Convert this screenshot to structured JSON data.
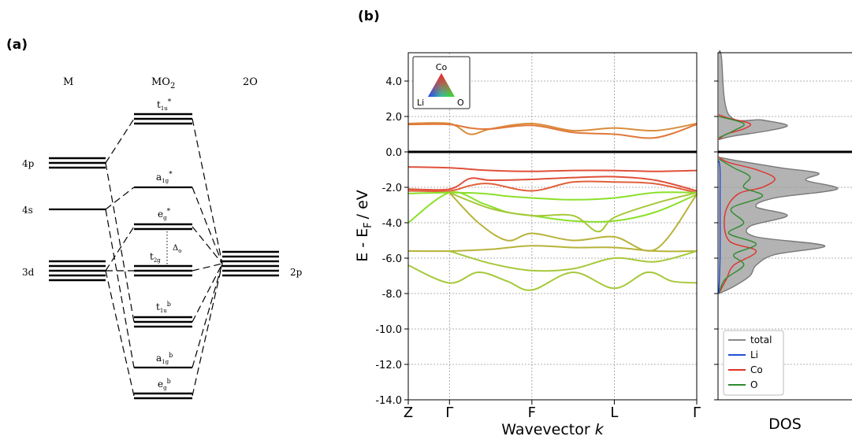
{
  "panel_a": {
    "label": "(a)",
    "columns": {
      "metal": "M",
      "complex": "MO",
      "complex_sub": "2",
      "ligand": "2O"
    },
    "metal_levels": {
      "p": "4p",
      "s": "4s",
      "d": "3d"
    },
    "ligand_level": "2p",
    "mo_levels": {
      "t1u_star": {
        "main": "t",
        "sub": "1u",
        "sup": "*"
      },
      "a1g_star": {
        "main": "a",
        "sub": "1g",
        "sup": "*"
      },
      "eg_star": {
        "main": "e",
        "sub": "g",
        "sup": "*"
      },
      "t2g": {
        "main": "t",
        "sub": "2g",
        "sup": ""
      },
      "delta": {
        "main": "Δ",
        "sub": "o"
      },
      "t1u_b": {
        "main": "t",
        "sub": "1u",
        "sup": "b"
      },
      "a1g_b": {
        "main": "a",
        "sub": "1g",
        "sup": "b"
      },
      "eg_b": {
        "main": "e",
        "sub": "g",
        "sup": "b"
      }
    }
  },
  "panel_b": {
    "label": "(b)",
    "colors": {
      "band_orange": "#d98c3a",
      "band_red": "#e0503a",
      "band_green": "#8be02a",
      "band_olive": "#b7b33a",
      "band_yg": "#a6c83a",
      "total": "#888888",
      "li": "#1f4fd8",
      "co": "#e0302a",
      "o": "#2e8b2e"
    },
    "triangle_legend": {
      "top": "Co",
      "left": "Li",
      "right": "O"
    },
    "band_chart": {
      "type": "line",
      "ylabel_main": "E - E",
      "ylabel_sub": "F",
      "ylabel_unit": "/ eV",
      "xlabel": "Wavevector",
      "xlabel_italic": "k",
      "ylim": [
        -14.0,
        5.6
      ],
      "yticks": [
        "4.0",
        "2.0",
        "0.0",
        "-2.0",
        "-4.0",
        "-6.0",
        "-8.0",
        "-10.0",
        "-12.0",
        "-14.0"
      ],
      "ytick_values": [
        4,
        2,
        0,
        -2,
        -4,
        -6,
        -8,
        -10,
        -12,
        -14
      ],
      "kpoints": [
        "Z",
        "Γ",
        "F",
        "L",
        "Γ"
      ],
      "kpoint_positions": [
        0,
        0.5,
        1.5,
        2.5,
        3.5
      ],
      "fermi_level": 0,
      "grid": true,
      "bands": [
        {
          "color": "#d98c3a",
          "points": [
            [
              0,
              1.6
            ],
            [
              0.5,
              1.6
            ],
            [
              0.75,
              1.0
            ],
            [
              1.0,
              1.3
            ],
            [
              1.5,
              1.6
            ],
            [
              2.0,
              1.2
            ],
            [
              2.5,
              1.35
            ],
            [
              3.0,
              1.2
            ],
            [
              3.5,
              1.6
            ]
          ]
        },
        {
          "color": "#e0783a",
          "points": [
            [
              0,
              1.55
            ],
            [
              0.5,
              1.55
            ],
            [
              0.75,
              1.35
            ],
            [
              1.0,
              1.3
            ],
            [
              1.5,
              1.5
            ],
            [
              2.0,
              1.1
            ],
            [
              2.5,
              1.0
            ],
            [
              3.0,
              0.8
            ],
            [
              3.5,
              1.55
            ]
          ]
        },
        {
          "color": "#e0503a",
          "points": [
            [
              0,
              -0.85
            ],
            [
              0.5,
              -0.9
            ],
            [
              1.0,
              -1.05
            ],
            [
              1.5,
              -1.1
            ],
            [
              2.0,
              -1.05
            ],
            [
              2.5,
              -1.05
            ],
            [
              3.0,
              -1.1
            ],
            [
              3.5,
              -1.05
            ]
          ]
        },
        {
          "color": "#e0503a",
          "points": [
            [
              0,
              -2.1
            ],
            [
              0.5,
              -2.1
            ],
            [
              0.75,
              -1.5
            ],
            [
              1.0,
              -1.6
            ],
            [
              1.5,
              -1.55
            ],
            [
              2.0,
              -1.45
            ],
            [
              2.5,
              -1.4
            ],
            [
              3.0,
              -1.6
            ],
            [
              3.5,
              -2.2
            ]
          ]
        },
        {
          "color": "#e0603a",
          "points": [
            [
              0,
              -2.2
            ],
            [
              0.5,
              -2.2
            ],
            [
              0.75,
              -1.9
            ],
            [
              1.0,
              -1.8
            ],
            [
              1.5,
              -2.2
            ],
            [
              2.0,
              -1.7
            ],
            [
              2.5,
              -1.7
            ],
            [
              3.0,
              -1.8
            ],
            [
              3.5,
              -2.3
            ]
          ]
        },
        {
          "color": "#8be02a",
          "points": [
            [
              0,
              -2.35
            ],
            [
              0.5,
              -2.3
            ],
            [
              0.9,
              -2.35
            ],
            [
              1.2,
              -2.5
            ],
            [
              1.5,
              -2.6
            ],
            [
              2.0,
              -2.7
            ],
            [
              2.5,
              -2.6
            ],
            [
              3.0,
              -2.3
            ],
            [
              3.5,
              -2.3
            ]
          ]
        },
        {
          "color": "#8be02a",
          "points": [
            [
              0,
              -4.0
            ],
            [
              0.5,
              -2.3
            ],
            [
              0.9,
              -2.9
            ],
            [
              1.2,
              -3.4
            ],
            [
              1.5,
              -3.6
            ],
            [
              2.0,
              -3.9
            ],
            [
              2.5,
              -3.9
            ],
            [
              3.0,
              -3.4
            ],
            [
              3.5,
              -2.4
            ]
          ]
        },
        {
          "color": "#a6c83a",
          "points": [
            [
              0.5,
              -2.3
            ],
            [
              1.0,
              -3.2
            ],
            [
              1.5,
              -3.6
            ],
            [
              2.0,
              -3.6
            ],
            [
              2.3,
              -4.5
            ],
            [
              2.5,
              -3.7
            ],
            [
              3.0,
              -2.9
            ],
            [
              3.5,
              -2.3
            ]
          ]
        },
        {
          "color": "#b7b33a",
          "points": [
            [
              0.5,
              -2.3
            ],
            [
              0.85,
              -4.0
            ],
            [
              1.2,
              -5.0
            ],
            [
              1.5,
              -4.6
            ],
            [
              2.0,
              -5.0
            ],
            [
              2.5,
              -4.8
            ],
            [
              3.0,
              -5.5
            ],
            [
              3.5,
              -2.4
            ]
          ]
        },
        {
          "color": "#b7b33a",
          "points": [
            [
              0,
              -5.6
            ],
            [
              0.5,
              -5.6
            ],
            [
              1.0,
              -5.5
            ],
            [
              1.5,
              -5.3
            ],
            [
              2.0,
              -5.4
            ],
            [
              2.5,
              -5.4
            ],
            [
              3.0,
              -5.6
            ],
            [
              3.5,
              -5.6
            ]
          ]
        },
        {
          "color": "#a6c83a",
          "points": [
            [
              0.5,
              -5.6
            ],
            [
              1.0,
              -6.3
            ],
            [
              1.5,
              -6.7
            ],
            [
              2.0,
              -6.6
            ],
            [
              2.5,
              -6.0
            ],
            [
              3.0,
              -6.2
            ],
            [
              3.5,
              -5.6
            ]
          ]
        },
        {
          "color": "#a6c83a",
          "points": [
            [
              0,
              -6.4
            ],
            [
              0.5,
              -7.4
            ],
            [
              0.85,
              -6.8
            ],
            [
              1.2,
              -7.3
            ],
            [
              1.5,
              -7.8
            ],
            [
              2.0,
              -6.8
            ],
            [
              2.5,
              -7.7
            ],
            [
              2.9,
              -6.8
            ],
            [
              3.2,
              -7.3
            ],
            [
              3.5,
              -7.4
            ]
          ]
        }
      ]
    },
    "dos_chart": {
      "type": "area",
      "xlabel": "DOS",
      "legend": [
        "total",
        "Li",
        "Co",
        "O"
      ],
      "legend_placement": "bottom-left",
      "total": [
        [
          5.6,
          0.0
        ],
        [
          5.4,
          0.02
        ],
        [
          2.1,
          0.08
        ],
        [
          1.8,
          0.35
        ],
        [
          1.5,
          0.55
        ],
        [
          1.2,
          0.4
        ],
        [
          0.9,
          0.12
        ],
        [
          0.7,
          0.0
        ]
      ],
      "total_valence": [
        [
          -0.3,
          0.0
        ],
        [
          -0.5,
          0.15
        ],
        [
          -0.9,
          0.5
        ],
        [
          -1.2,
          0.8
        ],
        [
          -1.6,
          0.7
        ],
        [
          -2.1,
          0.95
        ],
        [
          -2.6,
          0.45
        ],
        [
          -3.1,
          0.3
        ],
        [
          -3.6,
          0.55
        ],
        [
          -4.2,
          0.25
        ],
        [
          -4.8,
          0.3
        ],
        [
          -5.3,
          0.85
        ],
        [
          -5.8,
          0.45
        ],
        [
          -6.4,
          0.3
        ],
        [
          -7.0,
          0.25
        ],
        [
          -7.6,
          0.12
        ],
        [
          -8.0,
          0.0
        ]
      ],
      "co": [
        [
          2.1,
          0.0
        ],
        [
          1.9,
          0.08
        ],
        [
          1.6,
          0.25
        ],
        [
          1.3,
          0.2
        ],
        [
          1.0,
          0.06
        ],
        [
          0.7,
          0.0
        ]
      ],
      "co_valence": [
        [
          -0.3,
          0.0
        ],
        [
          -0.6,
          0.08
        ],
        [
          -1.0,
          0.3
        ],
        [
          -1.5,
          0.45
        ],
        [
          -2.0,
          0.35
        ],
        [
          -2.4,
          0.15
        ],
        [
          -3.5,
          0.05
        ],
        [
          -5.0,
          0.08
        ],
        [
          -5.6,
          0.3
        ],
        [
          -6.4,
          0.12
        ],
        [
          -7.2,
          0.06
        ],
        [
          -8.0,
          0.0
        ]
      ],
      "o": [
        [
          2.0,
          0.0
        ],
        [
          1.6,
          0.2
        ],
        [
          1.2,
          0.12
        ],
        [
          0.8,
          0.0
        ]
      ],
      "o_valence": [
        [
          -0.4,
          0.0
        ],
        [
          -0.9,
          0.12
        ],
        [
          -1.4,
          0.25
        ],
        [
          -2.0,
          0.2
        ],
        [
          -2.5,
          0.35
        ],
        [
          -3.2,
          0.1
        ],
        [
          -4.0,
          0.2
        ],
        [
          -4.6,
          0.08
        ],
        [
          -5.2,
          0.3
        ],
        [
          -5.8,
          0.12
        ],
        [
          -6.4,
          0.2
        ],
        [
          -7.2,
          0.05
        ],
        [
          -8.0,
          0.0
        ]
      ],
      "li": [
        [
          -0.5,
          0.0
        ],
        [
          -1.0,
          0.01
        ],
        [
          -3.0,
          0.01
        ],
        [
          -6.0,
          0.01
        ],
        [
          -8.0,
          0.0
        ]
      ],
      "max": 1.0
    }
  }
}
